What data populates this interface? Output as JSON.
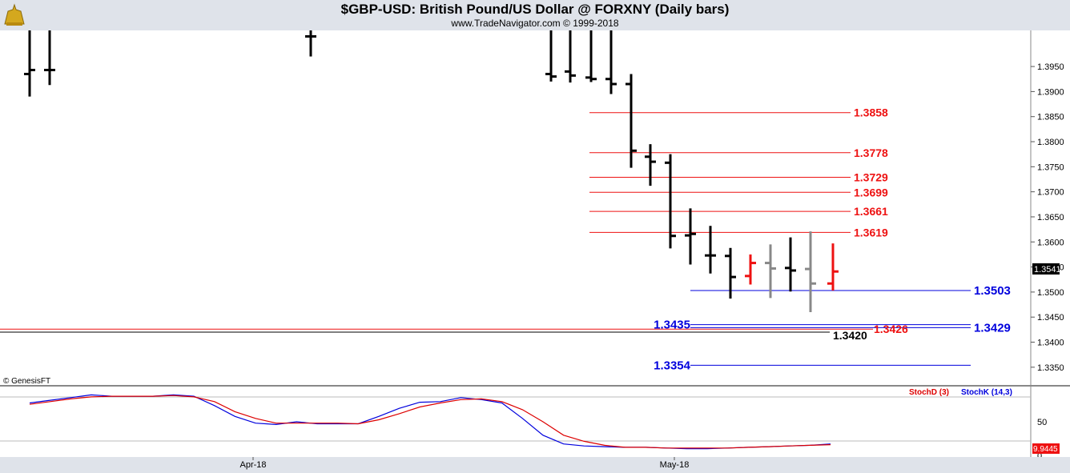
{
  "header": {
    "title": "$GBP-USD:  British Pound/US Dollar @ FORXNY  (Daily bars)",
    "subtitle": "www.TradeNavigator.com © 1999-2018",
    "logo_icon": "anchor-bell-logo"
  },
  "watermark": "© GenesisFT",
  "colors": {
    "up": "#000000",
    "down": "#000000",
    "red": "#ee1111",
    "gray": "#888888",
    "blue": "#0000dd",
    "stochK": "#0000dd",
    "stochD": "#dd0000"
  },
  "chart_data": [
    {
      "type": "ohlc",
      "title": "$GBP-USD:  British Pound/US Dollar @ FORXNY  (Daily bars)",
      "y_ticks": [
        "1.3950",
        "1.3900",
        "1.3850",
        "1.3800",
        "1.3750",
        "1.3700",
        "1.3650",
        "1.3600",
        "1.3550",
        "1.3500",
        "1.3450",
        "1.3400",
        "1.3350"
      ],
      "ylim": [
        1.3313,
        1.4022
      ],
      "last_price": "1.3541",
      "bars": [
        {
          "o": 1.3935,
          "h": 1.4022,
          "l": 1.389,
          "c": 1.3943,
          "color": "black"
        },
        {
          "o": 1.3943,
          "h": 1.4022,
          "l": 1.3913,
          "c": 1.3943,
          "color": "black"
        },
        {
          "o": 1.401,
          "h": 1.4022,
          "l": 1.397,
          "c": 1.401,
          "color": "black"
        },
        {
          "o": 1.3935,
          "h": 1.4022,
          "l": 1.392,
          "c": 1.393,
          "color": "black"
        },
        {
          "o": 1.394,
          "h": 1.4022,
          "l": 1.3918,
          "c": 1.3932,
          "color": "black"
        },
        {
          "o": 1.3928,
          "h": 1.4022,
          "l": 1.3919,
          "c": 1.3925,
          "color": "black"
        },
        {
          "o": 1.3925,
          "h": 1.4022,
          "l": 1.3895,
          "c": 1.3915,
          "color": "black"
        },
        {
          "o": 1.3915,
          "h": 1.3935,
          "l": 1.3748,
          "c": 1.3782,
          "color": "black"
        },
        {
          "o": 1.377,
          "h": 1.3795,
          "l": 1.3712,
          "c": 1.376,
          "color": "black"
        },
        {
          "o": 1.3758,
          "h": 1.3775,
          "l": 1.3587,
          "c": 1.3612,
          "color": "black"
        },
        {
          "o": 1.3613,
          "h": 1.3667,
          "l": 1.3555,
          "c": 1.3616,
          "color": "black"
        },
        {
          "o": 1.3573,
          "h": 1.3632,
          "l": 1.3537,
          "c": 1.3573,
          "color": "black"
        },
        {
          "o": 1.3572,
          "h": 1.3588,
          "l": 1.3487,
          "c": 1.353,
          "color": "black"
        },
        {
          "o": 1.3532,
          "h": 1.3575,
          "l": 1.3515,
          "c": 1.3558,
          "color": "red"
        },
        {
          "o": 1.3558,
          "h": 1.3595,
          "l": 1.3488,
          "c": 1.3547,
          "color": "gray"
        },
        {
          "o": 1.3548,
          "h": 1.3609,
          "l": 1.3501,
          "c": 1.3543,
          "color": "black"
        },
        {
          "o": 1.3546,
          "h": 1.3621,
          "l": 1.346,
          "c": 1.3517,
          "color": "gray"
        },
        {
          "o": 1.3517,
          "h": 1.3597,
          "l": 1.3503,
          "c": 1.3541,
          "color": "red"
        }
      ],
      "levels": [
        {
          "label": "1.3858",
          "value": 1.3858,
          "color": "red"
        },
        {
          "label": "1.3778",
          "value": 1.3778,
          "color": "red"
        },
        {
          "label": "1.3729",
          "value": 1.3729,
          "color": "red"
        },
        {
          "label": "1.3699",
          "value": 1.3699,
          "color": "red"
        },
        {
          "label": "1.3661",
          "value": 1.3661,
          "color": "red"
        },
        {
          "label": "1.3619",
          "value": 1.3619,
          "color": "red"
        },
        {
          "label": "1.3503",
          "value": 1.3503,
          "color": "blue"
        },
        {
          "label": "1.3435",
          "value": 1.3435,
          "color": "blue"
        },
        {
          "label": "1.3429",
          "value": 1.3429,
          "color": "blue"
        },
        {
          "label": "1.3426",
          "value": 1.3426,
          "color": "red"
        },
        {
          "label": "1.3420",
          "value": 1.342,
          "color": "black"
        },
        {
          "label": "1.3354",
          "value": 1.3354,
          "color": "blue"
        }
      ]
    },
    {
      "type": "line",
      "title": "",
      "legend": [
        "StochD (3)",
        "StochK (14,3)"
      ],
      "y_ticks": [
        "50",
        "0"
      ],
      "ylim": [
        0,
        100
      ],
      "last_value": "9.9445",
      "x_labels": [
        "Apr-18",
        "May-18"
      ],
      "series": [
        {
          "name": "StochK (14,3)",
          "values": [
            78,
            82,
            86,
            90,
            88,
            88,
            88,
            90,
            88,
            74,
            58,
            48,
            46,
            50,
            47,
            47,
            47,
            58,
            70,
            79,
            80,
            86,
            83,
            78,
            55,
            30,
            17,
            14,
            13,
            12,
            12,
            11,
            10,
            10,
            11,
            12,
            13,
            14,
            15,
            17
          ]
        },
        {
          "name": "StochD (3)",
          "values": [
            76,
            80,
            84,
            87,
            88,
            88,
            88,
            89,
            87,
            80,
            65,
            55,
            48,
            48,
            48,
            48,
            47,
            53,
            62,
            72,
            78,
            83,
            84,
            80,
            68,
            50,
            30,
            21,
            15,
            12,
            12,
            11,
            11,
            11,
            11,
            12,
            13,
            14,
            15,
            16
          ]
        }
      ]
    }
  ]
}
